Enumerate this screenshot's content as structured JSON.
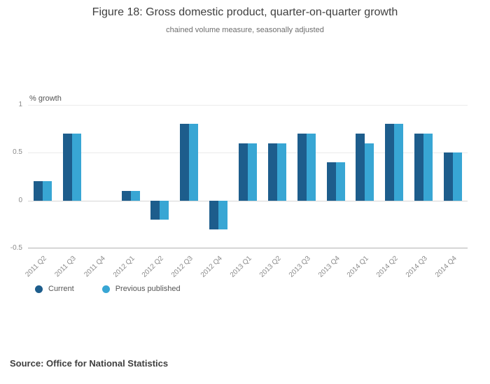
{
  "header": {
    "title": "Figure 18: Gross domestic product, quarter-on-quarter growth",
    "subtitle": "chained volume measure, seasonally adjusted"
  },
  "chart_data": {
    "type": "bar",
    "title": "Figure 18: Gross domestic product, quarter-on-quarter growth",
    "subtitle": "chained volume measure, seasonally adjusted",
    "xlabel": "",
    "ylabel": "% growth",
    "ylim": [
      -0.5,
      1
    ],
    "yticks": [
      1,
      0.5,
      0,
      -0.5
    ],
    "grid": true,
    "legend_position": "bottom-left",
    "categories": [
      "2011 Q2",
      "2011 Q3",
      "2011 Q4",
      "2012 Q1",
      "2012 Q2",
      "2012 Q3",
      "2012 Q4",
      "2013 Q1",
      "2013 Q2",
      "2013 Q3",
      "2013 Q4",
      "2014 Q1",
      "2014 Q2",
      "2014 Q3",
      "2014 Q4"
    ],
    "series": [
      {
        "name": "Current",
        "color": "#1d5d8c",
        "values": [
          0.2,
          0.7,
          0,
          0.1,
          -0.2,
          0.8,
          -0.3,
          0.6,
          0.6,
          0.7,
          0.4,
          0.7,
          0.8,
          0.7,
          0.5
        ]
      },
      {
        "name": "Previous published",
        "color": "#38a6d4",
        "values": [
          0.2,
          0.7,
          0,
          0.1,
          -0.2,
          0.8,
          -0.3,
          0.6,
          0.6,
          0.7,
          0.4,
          0.6,
          0.8,
          0.7,
          0.5
        ]
      }
    ]
  },
  "footer": {
    "source": "Source: Office for National Statistics"
  }
}
